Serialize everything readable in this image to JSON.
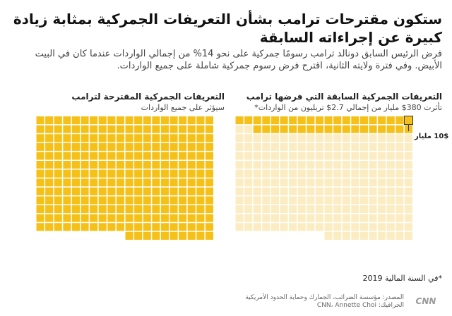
{
  "title": "ستكون مقترحات ترامب بشأن التعريفات الجمركية بمثابة زيادة كبيرة عن إجراءاته السابقة",
  "subtitle": "فرض الرئيس السابق دونالد ترامب رسومًا جمركية على نحو 14% من إجمالي الواردات عندما كان في البيت الأبيض. وفي فترة ولايته الثانية، اقترح فرض رسوم جمركية شاملة على جميع الواردات.",
  "left_panel": {
    "title": "التعريفات الجمركية السابقة التي فرضها ترامب",
    "subtitle": "تأثرت 380$ مليار من إجمالي 2.7$ تريليون من الواردات*"
  },
  "right_panel": {
    "title": "التعريفات الجمركية المقترحة لترامب",
    "subtitle": "سيؤثر على جميع الواردات"
  },
  "callout": "10$ مليار",
  "footnote": "*في السنة المالية 2019",
  "source_line1": "المصدر: مؤسسة الضرائب، الجمارك وحماية الحدود الأمريكية",
  "source_line2": "الجرافيك: CNN، Annette Choi",
  "logo_text": "CNN",
  "colors": {
    "filled": "#F5C118",
    "empty": "#FBECC2",
    "text": "#1a1a1a"
  },
  "chart_data": [
    {
      "type": "waffle",
      "title": "التعريفات الجمركية السابقة التي فرضها ترامب",
      "unit_value_billion_usd": 10,
      "total_squares": 270,
      "filled_squares": 38,
      "columns": 20
    },
    {
      "type": "waffle",
      "title": "التعريفات الجمركية المقترحة لترامب",
      "unit_value_billion_usd": 10,
      "total_squares": 270,
      "filled_squares": 270,
      "columns": 20
    }
  ]
}
